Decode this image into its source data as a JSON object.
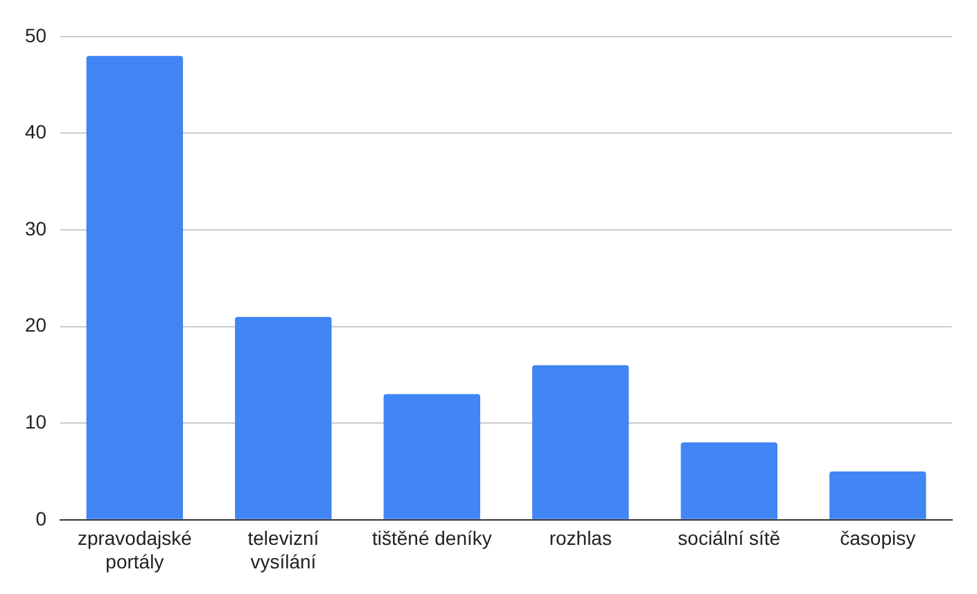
{
  "chart_data": {
    "type": "bar",
    "categories": [
      "zpravodajské portály",
      "televizní vysílání",
      "tištěné deníky",
      "rozhlas",
      "sociální sítě",
      "časopisy"
    ],
    "values": [
      48,
      21,
      13,
      16,
      8,
      5
    ],
    "color": "#4285f4",
    "ylim": [
      0,
      50
    ],
    "yticks": [
      0,
      10,
      20,
      30,
      40,
      50
    ],
    "grid": "y"
  }
}
